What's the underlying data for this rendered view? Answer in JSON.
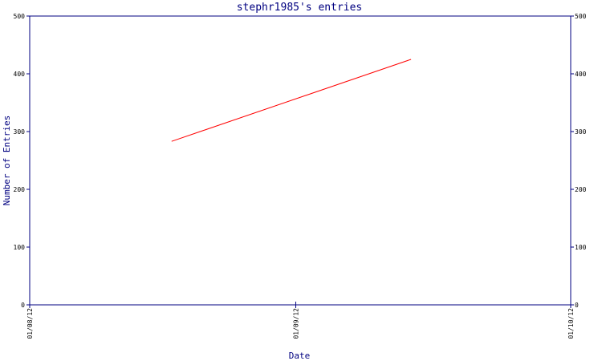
{
  "chart_data": {
    "type": "line",
    "title": "stephr1985's entries",
    "xlabel": "Date",
    "ylabel": "Number of Entries",
    "x_ticks": [
      "01/08/12",
      "01/09/12",
      "01/10/12"
    ],
    "ylim": [
      0,
      500
    ],
    "y_ticks": [
      "0",
      "100",
      "200",
      "300",
      "400",
      "500"
    ],
    "grid": false,
    "series": [
      {
        "x": [
          "2012-08-17",
          "2012-09-13"
        ],
        "y": [
          283,
          425
        ]
      }
    ]
  },
  "colors": {
    "axis": "#000080",
    "line": "#ff0000",
    "text": "#000080"
  }
}
